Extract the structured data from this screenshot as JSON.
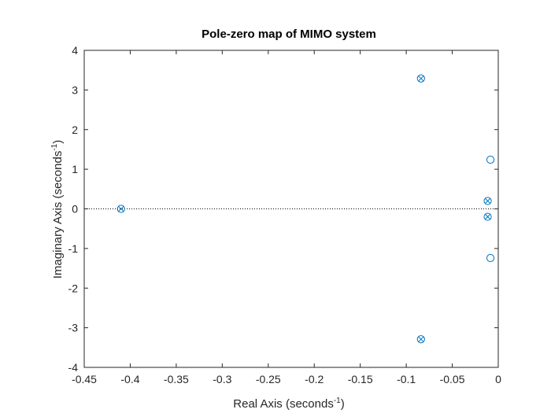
{
  "chart_data": {
    "type": "scatter",
    "title": "Pole-zero map of MIMO system",
    "xlabel": "Real Axis (seconds",
    "ylabel": "Imaginary Axis (seconds",
    "axis_unit_exponent": "-1",
    "xlim": [
      -0.45,
      0
    ],
    "ylim": [
      -4,
      4
    ],
    "xticks": [
      -0.45,
      -0.4,
      -0.35,
      -0.3,
      -0.25,
      -0.2,
      -0.15,
      -0.1,
      -0.05,
      0
    ],
    "xtick_labels": [
      "-0.45",
      "-0.4",
      "-0.35",
      "-0.3",
      "-0.25",
      "-0.2",
      "-0.15",
      "-0.1",
      "-0.05",
      "0"
    ],
    "yticks": [
      -4,
      -3,
      -2,
      -1,
      0,
      1,
      2,
      3,
      4
    ],
    "ytick_labels": [
      "-4",
      "-3",
      "-2",
      "-1",
      "0",
      "1",
      "2",
      "3",
      "4"
    ],
    "grid": false,
    "reference_line": {
      "y": 0,
      "style": "dotted"
    },
    "marker_color": "#0072BD",
    "series": [
      {
        "marker": "pole",
        "points": [
          {
            "x": -0.41,
            "y": 0
          },
          {
            "x": -0.084,
            "y": 3.29
          },
          {
            "x": -0.084,
            "y": -3.29
          },
          {
            "x": -0.0115,
            "y": 0.2
          },
          {
            "x": -0.0115,
            "y": -0.2
          }
        ]
      },
      {
        "marker": "zero",
        "points": [
          {
            "x": -0.41,
            "y": 0
          },
          {
            "x": -0.084,
            "y": 3.29
          },
          {
            "x": -0.084,
            "y": -3.29
          },
          {
            "x": -0.0115,
            "y": 0.2
          },
          {
            "x": -0.0115,
            "y": -0.2
          },
          {
            "x": -0.0085,
            "y": 1.24
          },
          {
            "x": -0.0085,
            "y": -1.24
          }
        ]
      }
    ]
  }
}
